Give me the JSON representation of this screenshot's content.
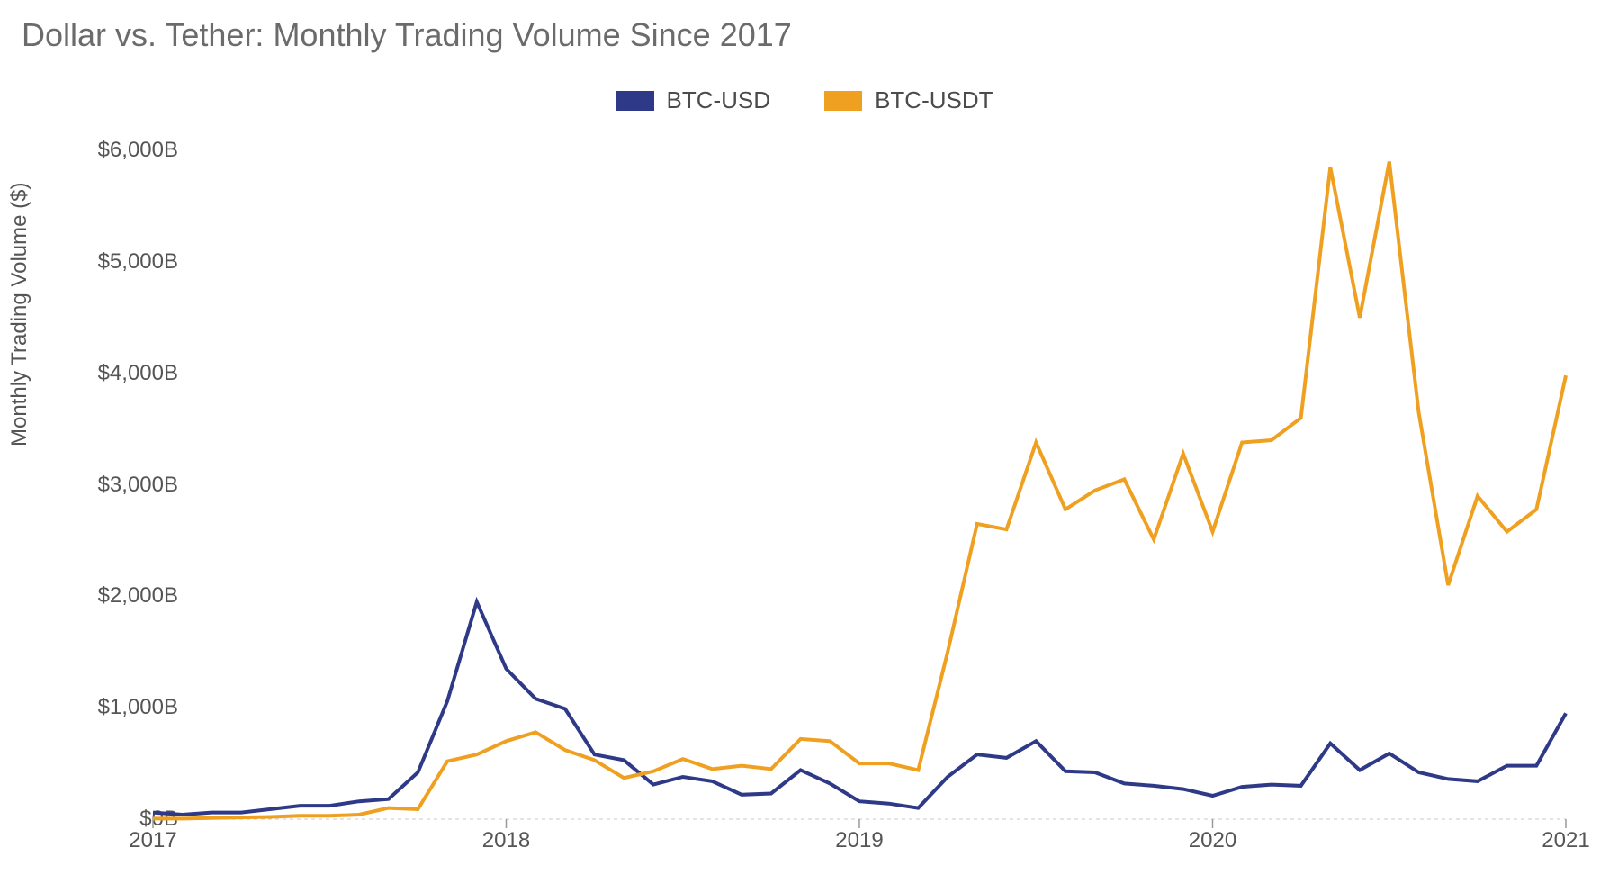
{
  "chart": {
    "type": "line",
    "title": "Dollar vs. Tether: Monthly Trading Volume Since 2017",
    "title_fontsize": 36,
    "title_color": "#6b6b6b",
    "background_color": "#ffffff",
    "yaxis": {
      "label": "Monthly Trading Volume ($)",
      "label_fontsize": 24,
      "ticks": [
        0,
        1000,
        2000,
        3000,
        4000,
        5000,
        6000
      ],
      "tick_labels": [
        "$0B",
        "$1,000B",
        "$2,000B",
        "$3,000B",
        "$4,000B",
        "$5,000B",
        "$6,000B"
      ],
      "min": 0,
      "max": 6300,
      "tick_color": "#555555",
      "gridline_color": "#dcdcdc",
      "gridline_dash": "4 4"
    },
    "xaxis": {
      "ticks": [
        0,
        12,
        24,
        36,
        48
      ],
      "tick_labels": [
        "2017",
        "2018",
        "2019",
        "2020",
        "2021"
      ],
      "min": 0,
      "max": 48,
      "tick_color": "#555555"
    },
    "legend": {
      "position": "top-center",
      "fontsize": 26,
      "items": [
        {
          "label": "BTC-USD",
          "color": "#2e3a87"
        },
        {
          "label": "BTC-USDT",
          "color": "#f0a020"
        }
      ]
    },
    "line_width": 4,
    "series": [
      {
        "name": "BTC-USD",
        "color": "#2e3a87",
        "values": [
          60,
          40,
          60,
          60,
          90,
          120,
          120,
          160,
          180,
          420,
          1060,
          1950,
          1350,
          1080,
          990,
          580,
          530,
          310,
          380,
          340,
          220,
          230,
          440,
          320,
          160,
          140,
          100,
          380,
          580,
          550,
          700,
          430,
          420,
          320,
          300,
          270,
          210,
          290,
          310,
          300,
          680,
          440,
          590,
          420,
          360,
          340,
          480,
          480,
          950
        ]
      },
      {
        "name": "BTC-USDT",
        "color": "#f0a020",
        "values": [
          5,
          5,
          10,
          15,
          20,
          30,
          30,
          40,
          100,
          90,
          520,
          580,
          700,
          780,
          620,
          530,
          370,
          430,
          540,
          450,
          480,
          450,
          720,
          700,
          500,
          500,
          440,
          1500,
          2650,
          2600,
          3380,
          2780,
          2950,
          3050,
          2510,
          3280,
          2580,
          3380,
          3400,
          3600,
          5850,
          4500,
          5900,
          3650,
          2100,
          2900,
          2580,
          2780,
          3980
        ]
      }
    ]
  }
}
